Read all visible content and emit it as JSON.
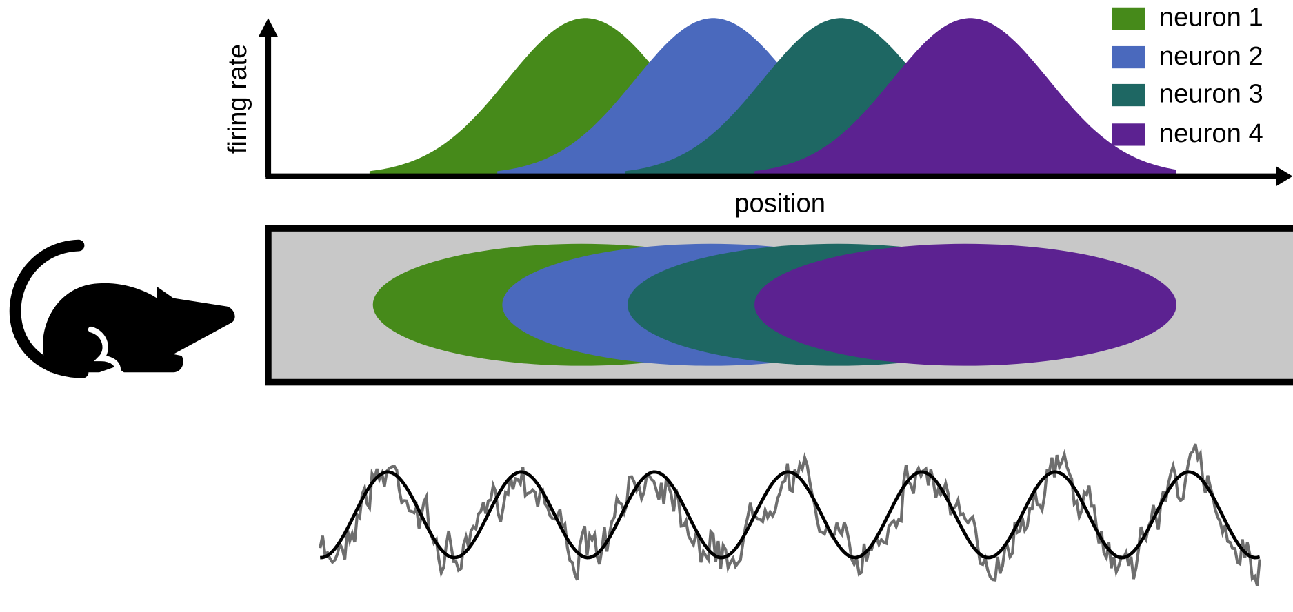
{
  "axes": {
    "y_label": "firing rate",
    "x_label": "position"
  },
  "legend": [
    "neuron 1",
    "neuron 2",
    "neuron 3",
    "neuron 4"
  ]
}
